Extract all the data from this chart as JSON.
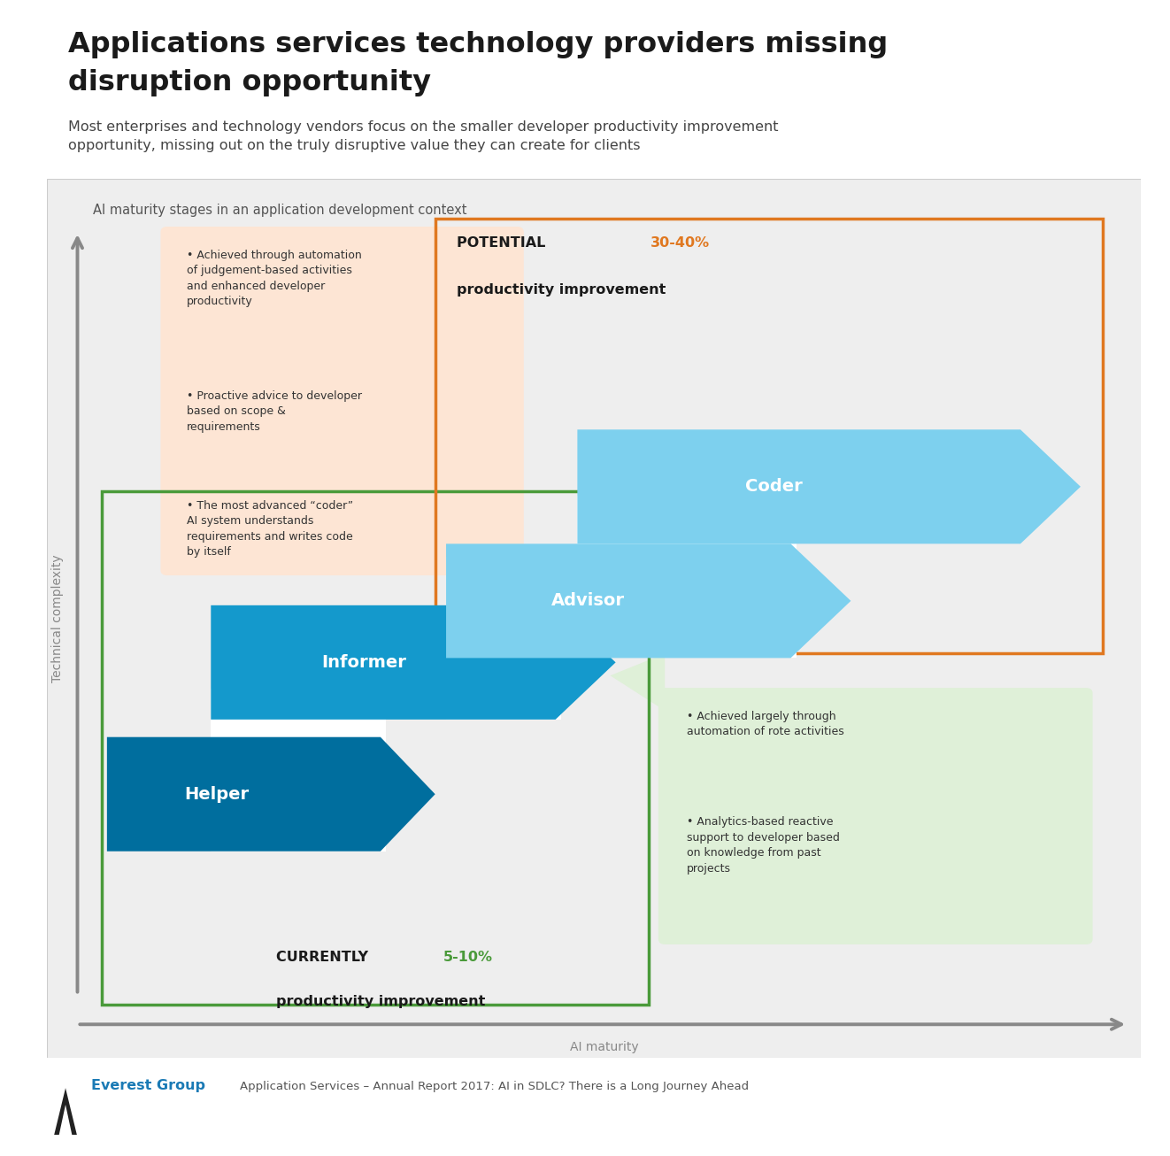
{
  "title_line1": "Applications services technology providers missing",
  "title_line2": "disruption opportunity",
  "subtitle": "Most enterprises and technology vendors focus on the smaller developer productivity improvement\nopportunity, missing out on the truly disruptive value they can create for clients",
  "chart_subtitle": "AI maturity stages in an application development context",
  "bg_color": "#eeeeee",
  "white": "#ffffff",
  "arrow_dark_blue": "#006e9e",
  "arrow_medium_blue": "#1499cc",
  "arrow_light_blue": "#7dd0ee",
  "orange_border": "#e07820",
  "green_border": "#4a9a3a",
  "peach_box_color": "#fde5d4",
  "green_box_color": "#dff0d8",
  "text_dark": "#1a1a1a",
  "orange_text": "#e07820",
  "green_text": "#4a9a3a",
  "footer_blue": "#1a7ab5",
  "footer_text": "Application Services – Annual Report 2017: AI in SDLC? There is a Long Journey Ahead",
  "ylabel": "Technical complexity",
  "xlabel": "AI maturity",
  "peach_bullet1": "Achieved through automation\nof judgement-based activities\nand enhanced developer\nproductivity",
  "peach_bullet2": "Proactive advice to developer\nbased on scope &\nrequirements",
  "peach_bullet3": "The most advanced “coder”\nAI system understands\nrequirements and writes code\nby itself",
  "green_bullet1": "Achieved largely through\nautomation of rote activities",
  "green_bullet2": "Analytics-based reactive\nsupport to developer based\non knowledge from past\nprojects"
}
